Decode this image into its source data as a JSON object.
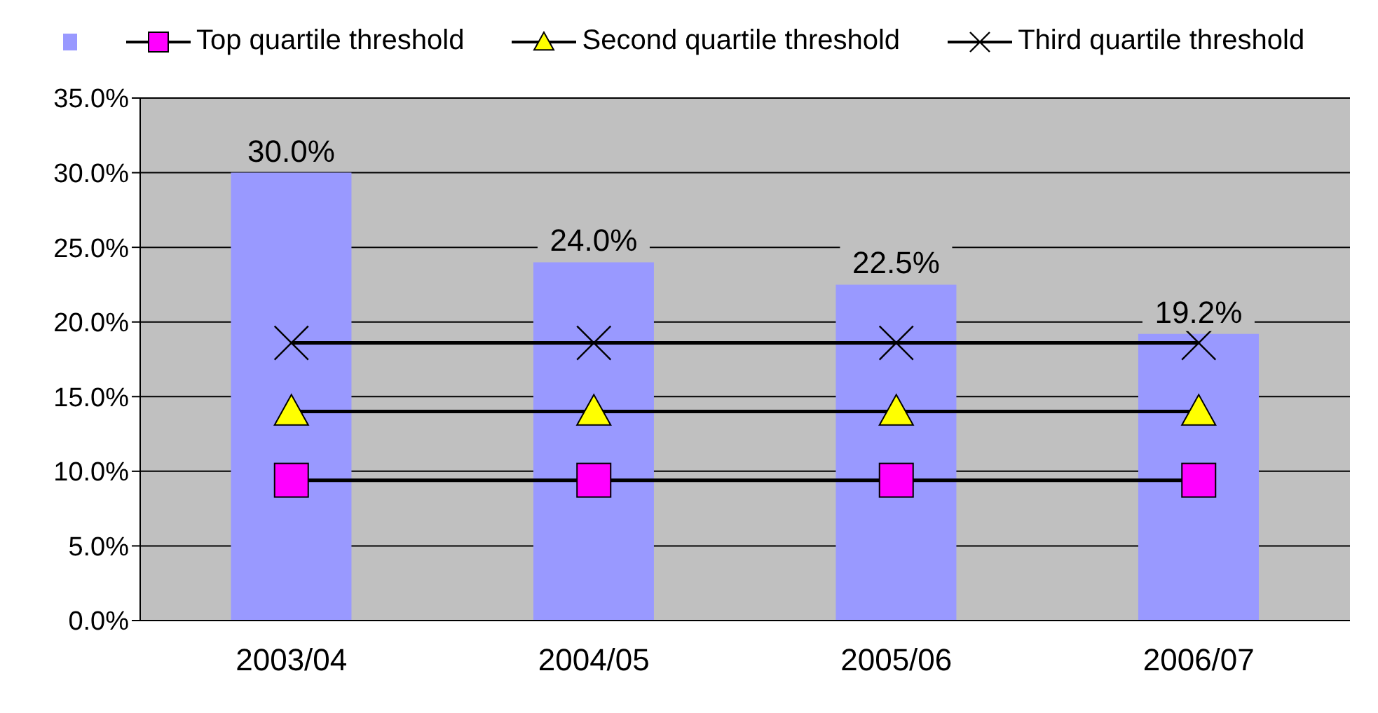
{
  "chart_data": {
    "type": "bar",
    "categories": [
      "2003/04",
      "2004/05",
      "2005/06",
      "2006/07"
    ],
    "series": [
      {
        "color": "#9999ff",
        "values": [
          30.0,
          24.0,
          22.5,
          19.2
        ],
        "value_labels": [
          "30.0%",
          "24.0%",
          "22.5%",
          "19.2%"
        ]
      },
      {
        "type": "line",
        "name": "Top quartile threshold",
        "color": "#ff00ff",
        "marker": "square",
        "values": [
          9.4,
          9.4,
          9.4,
          9.4
        ]
      },
      {
        "type": "line",
        "name": "Second quartile threshold",
        "color": "#ffff00",
        "marker": "triangle",
        "values": [
          14.0,
          14.0,
          14.0,
          14.0
        ]
      },
      {
        "type": "line",
        "name": "Third quartile threshold",
        "color": "#000000",
        "marker": "cross",
        "values": [
          18.6,
          18.6,
          18.6,
          18.6
        ]
      }
    ],
    "ylim": [
      0,
      35
    ],
    "yticks": [
      {
        "value": 0,
        "label": "0.0%"
      },
      {
        "value": 5,
        "label": "5.0%"
      },
      {
        "value": 10,
        "label": "10.0%"
      },
      {
        "value": 15,
        "label": "15.0%"
      },
      {
        "value": 20,
        "label": "20.0%"
      },
      {
        "value": 25,
        "label": "25.0%"
      },
      {
        "value": 30,
        "label": "30.0%"
      },
      {
        "value": 35,
        "label": "35.0%"
      }
    ],
    "grid": "y",
    "legend": "top"
  }
}
